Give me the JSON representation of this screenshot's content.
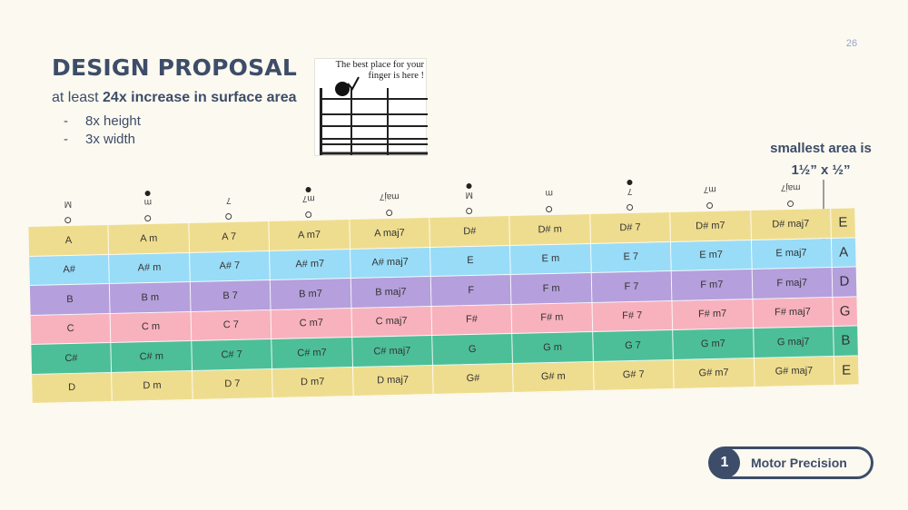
{
  "page_number": "26",
  "title": "DESIGN PROPOSAL",
  "subtitle_prefix": "at least ",
  "subtitle_bold": "24x increase in surface area",
  "bullets": [
    {
      "dash": "-",
      "text": "8x height"
    },
    {
      "dash": "-",
      "text": "3x width"
    }
  ],
  "illustration": {
    "caption_line1": "The best place for your",
    "caption_line2": "finger is here !"
  },
  "note": {
    "line1": "smallest area is",
    "line2": "1½” x ½”"
  },
  "grid": {
    "header": [
      {
        "label": "M",
        "filled_dot": false
      },
      {
        "label": "m",
        "filled_dot": true
      },
      {
        "label": "7",
        "filled_dot": false
      },
      {
        "label": "m7",
        "filled_dot": true
      },
      {
        "label": "maj7",
        "filled_dot": false
      },
      {
        "label": "M",
        "filled_dot": true
      },
      {
        "label": "m",
        "filled_dot": false
      },
      {
        "label": "7",
        "filled_dot": true
      },
      {
        "label": "m7",
        "filled_dot": false
      },
      {
        "label": "maj7",
        "filled_dot": false
      }
    ],
    "rows": [
      {
        "color": "#efdd8f",
        "string": "E",
        "cells": [
          "A",
          "A  m",
          "A  7",
          "A  m7",
          "A  maj7",
          "D#",
          "D# m",
          "D# 7",
          "D# m7",
          "D# maj7"
        ]
      },
      {
        "color": "#98dcf8",
        "string": "A",
        "cells": [
          "A#",
          "A# m",
          "A# 7",
          "A# m7",
          "A# maj7",
          "E",
          "E  m",
          "E  7",
          "E  m7",
          "E  maj7"
        ]
      },
      {
        "color": "#b59fdc",
        "string": "D",
        "cells": [
          "B",
          "B  m",
          "B  7",
          "B  m7",
          "B  maj7",
          "F",
          "F  m",
          "F  7",
          "F  m7",
          "F  maj7"
        ]
      },
      {
        "color": "#f8b2bd",
        "string": "G",
        "cells": [
          "C",
          "C  m",
          "C  7",
          "C  m7",
          "C  maj7",
          "F#",
          "F# m",
          "F# 7",
          "F# m7",
          "F# maj7"
        ]
      },
      {
        "color": "#4cbf98",
        "string": "B",
        "cells": [
          "C#",
          "C# m",
          "C# 7",
          "C# m7",
          "C# maj7",
          "G",
          "G  m",
          "G  7",
          "G  m7",
          "G  maj7"
        ]
      },
      {
        "color": "#efdd8f",
        "string": "E",
        "cells": [
          "D",
          "D  m",
          "D  7",
          "D  m7",
          "D  maj7",
          "G#",
          "G# m",
          "G# 7",
          "G# m7",
          "G# maj7"
        ]
      }
    ]
  },
  "section_badge": {
    "number": "1",
    "label": "Motor Precision"
  }
}
